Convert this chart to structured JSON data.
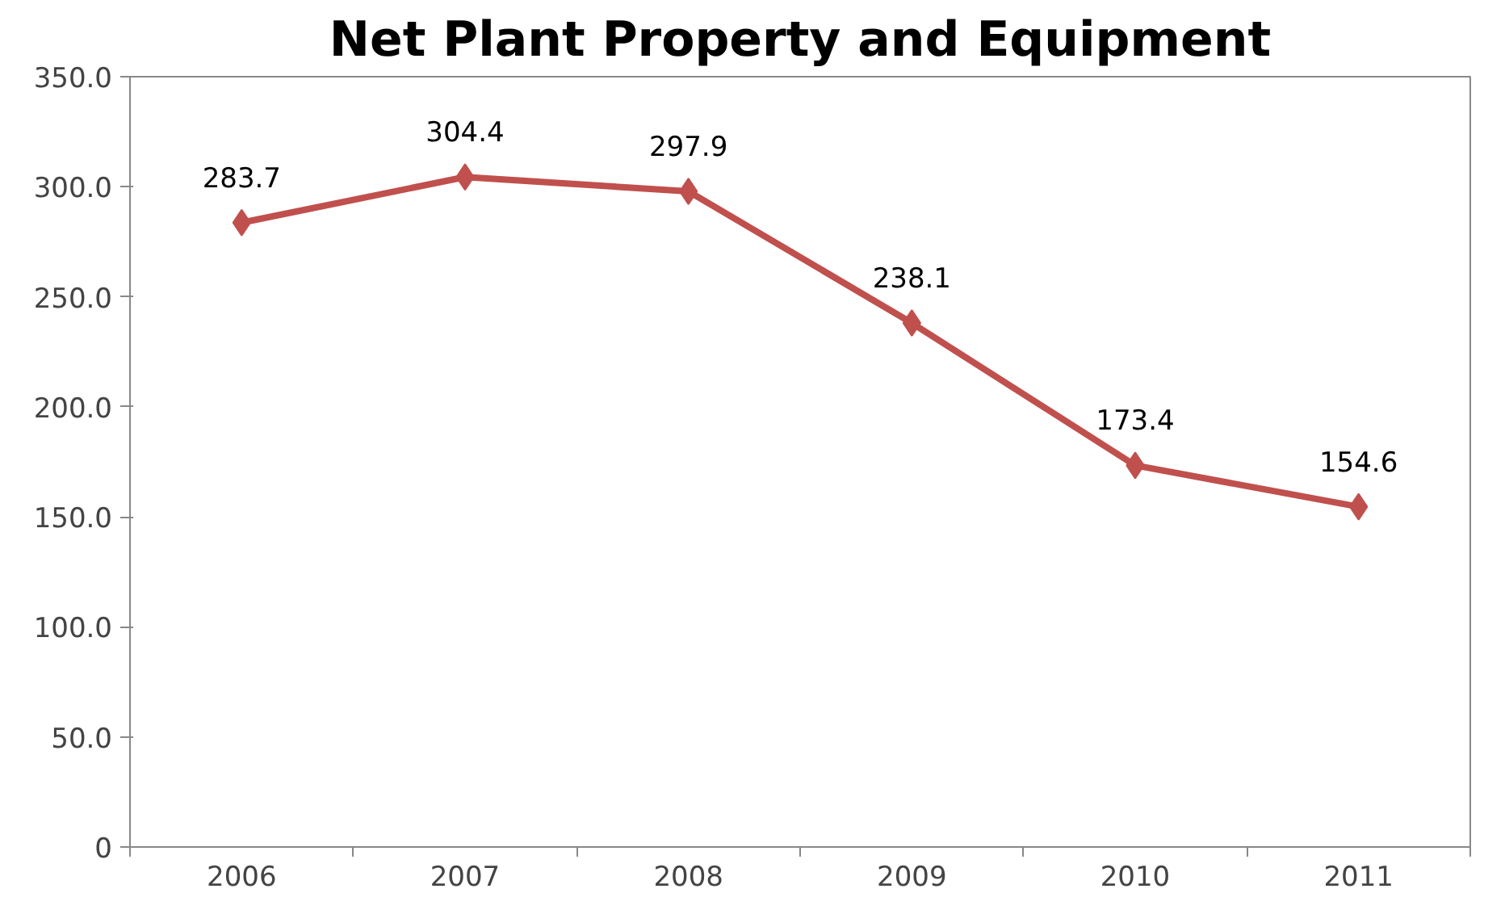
{
  "chart_data": {
    "type": "line",
    "title": "Net Plant Property and Equipment",
    "categories": [
      "2006",
      "2007",
      "2008",
      "2009",
      "2010",
      "2011"
    ],
    "series": [
      {
        "color": "#c0504d",
        "values": [
          283.7,
          304.4,
          297.9,
          238.1,
          173.4,
          154.6
        ]
      }
    ],
    "ylim": [
      0,
      350
    ],
    "yticks": [
      0,
      {
        "value": 50,
        "label": "50.0"
      },
      {
        "value": 100,
        "label": "100.0"
      },
      {
        "value": 150,
        "label": "150.0"
      },
      {
        "value": 200,
        "label": "200.0"
      },
      {
        "value": 250,
        "label": "250.0"
      },
      {
        "value": 300,
        "label": "300.0"
      },
      {
        "value": 350,
        "label": "350.0"
      }
    ],
    "data_labels": true,
    "grid": false,
    "marker": "diamond",
    "line_style": "solid"
  }
}
